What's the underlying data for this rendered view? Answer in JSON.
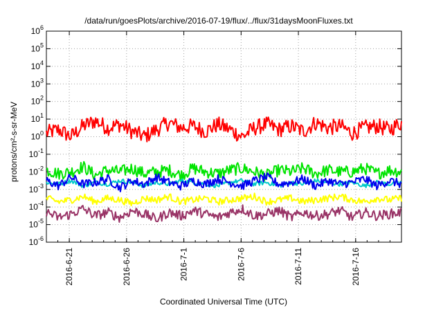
{
  "chart_data": {
    "type": "line",
    "title": "/data/run/goesPlots/archive/2016-07-19/flux/../flux/31daysMoonFluxes.txt",
    "xlabel": "Coordinated Universal Time (UTC)",
    "ylabel": "protons/cm²-s-sr-MeV",
    "yscale": "log",
    "ylim": [
      1e-06,
      1000000.0
    ],
    "y_ticks": [
      {
        "base": "10",
        "exp": "-6"
      },
      {
        "base": "10",
        "exp": "-5"
      },
      {
        "base": "10",
        "exp": "-4"
      },
      {
        "base": "10",
        "exp": "-3"
      },
      {
        "base": "10",
        "exp": "-2"
      },
      {
        "base": "10",
        "exp": "-1"
      },
      {
        "base": "10",
        "exp": "0"
      },
      {
        "base": "10",
        "exp": "1"
      },
      {
        "base": "10",
        "exp": "2"
      },
      {
        "base": "10",
        "exp": "3"
      },
      {
        "base": "10",
        "exp": "4"
      },
      {
        "base": "10",
        "exp": "5"
      },
      {
        "base": "10",
        "exp": "6"
      }
    ],
    "xlim": [
      "2016-06-19",
      "2016-07-20"
    ],
    "x_ticks": [
      "2016-6-21",
      "2016-6-26",
      "2016-7-1",
      "2016-7-6",
      "2016-7-11",
      "2016-7-16"
    ],
    "grid": true,
    "series": [
      {
        "name": "red",
        "color": "#ff0000",
        "log10_values": [
          0.2,
          0.4,
          0.0,
          0.6,
          0.9,
          0.5,
          0.7,
          0.3,
          0.0,
          0.4,
          0.8,
          0.5,
          0.6,
          0.3,
          0.7,
          0.4,
          0.0,
          0.5,
          0.7,
          0.4,
          0.6,
          0.3,
          0.8,
          0.5,
          0.6,
          0.2,
          0.5,
          0.6,
          0.4,
          0.8
        ]
      },
      {
        "name": "green",
        "color": "#00e400",
        "log10_values": [
          -1.9,
          -2.1,
          -2.0,
          -1.7,
          -2.2,
          -1.9,
          -2.0,
          -1.8,
          -2.1,
          -2.0,
          -1.9,
          -2.2,
          -1.8,
          -2.0,
          -2.1,
          -1.9,
          -1.8,
          -2.0,
          -2.2,
          -1.9,
          -2.0,
          -1.8,
          -2.1,
          -1.9,
          -2.0,
          -2.0,
          -1.8,
          -2.1,
          -1.9,
          -2.0
        ]
      },
      {
        "name": "cyan",
        "color": "#00c8c8",
        "log10_values": [
          -2.6,
          -2.7,
          -2.5,
          -2.8,
          -2.6,
          -2.7,
          -2.5,
          -2.6,
          -2.8,
          -2.6,
          -2.7,
          -2.5,
          -2.6,
          -2.7,
          -2.8,
          -2.6,
          -2.5,
          -2.7,
          -2.6,
          -2.8,
          -2.6,
          -2.7,
          -2.5,
          -2.6,
          -2.7,
          -2.6,
          -2.8,
          -2.6,
          -2.7,
          -2.6
        ]
      },
      {
        "name": "blue",
        "color": "#0000ee",
        "log10_values": [
          -2.5,
          -2.8,
          -2.3,
          -2.7,
          -2.6,
          -2.4,
          -2.9,
          -2.5,
          -2.7,
          -2.3,
          -2.6,
          -2.8,
          -2.5,
          -2.7,
          -2.4,
          -2.6,
          -2.8,
          -2.5,
          -2.3,
          -2.7,
          -2.6,
          -2.4,
          -2.8,
          -2.5,
          -2.7,
          -2.6,
          -2.4,
          -2.8,
          -2.5,
          -2.7
        ]
      },
      {
        "name": "yellow",
        "color": "#ffff00",
        "log10_values": [
          -3.5,
          -3.7,
          -3.6,
          -3.4,
          -3.7,
          -3.5,
          -3.6,
          -3.8,
          -3.5,
          -3.6,
          -3.4,
          -3.7,
          -3.6,
          -3.5,
          -3.7,
          -3.6,
          -3.5,
          -3.4,
          -3.7,
          -3.6,
          -3.5,
          -3.7,
          -3.6,
          -3.5,
          -3.4,
          -3.6,
          -3.7,
          -3.5,
          -3.6,
          -3.5
        ]
      },
      {
        "name": "purple",
        "color": "#993366",
        "log10_values": [
          -4.3,
          -4.6,
          -4.4,
          -4.1,
          -4.5,
          -4.3,
          -4.6,
          -4.2,
          -4.4,
          -4.7,
          -4.3,
          -4.5,
          -4.2,
          -4.4,
          -4.6,
          -4.3,
          -4.1,
          -4.5,
          -4.4,
          -4.2,
          -4.6,
          -4.3,
          -4.5,
          -4.4,
          -4.2,
          -4.6,
          -4.3,
          -4.5,
          -4.4,
          -4.3
        ]
      }
    ]
  }
}
